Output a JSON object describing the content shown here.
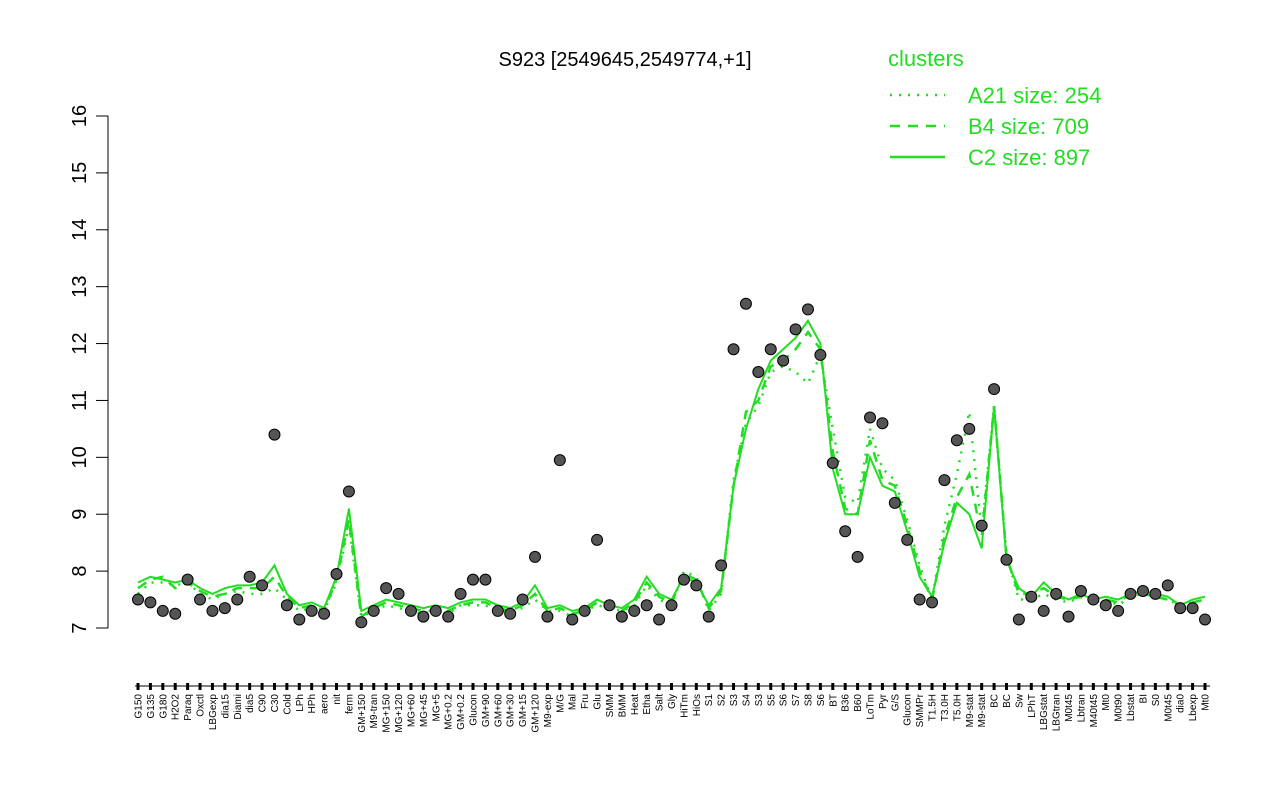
{
  "chart_data": {
    "type": "line",
    "title": "S923 [2549645,2549774,+1]",
    "legend_title": "clusters",
    "legend_position": "top-right",
    "categories": [
      "G150",
      "G135",
      "G180",
      "H2O2",
      "Paraq",
      "Oxctl",
      "LBGexp",
      "dia15",
      "Diami",
      "dia5",
      "C90",
      "C30",
      "Cold",
      "LPh",
      "HPh",
      "aero",
      "nit",
      "ferm",
      "GM+150",
      "M9-tran",
      "MG+150",
      "MG+120",
      "MG+60",
      "MG+45",
      "MG+5",
      "MG+0.2",
      "GM+0.2",
      "Glucon",
      "GM+90",
      "GM+60",
      "GM+30",
      "GM+15",
      "GM+120",
      "M9-exp",
      "M/G",
      "Mal",
      "Fru",
      "Glu",
      "SMM",
      "BMM",
      "Heat",
      "Etha",
      "Salt",
      "Gly",
      "HiTm",
      "HiOs",
      "S1",
      "S2",
      "S3",
      "S4",
      "S3",
      "S5",
      "S6",
      "S7",
      "S8",
      "S6",
      "BT",
      "B36",
      "B60",
      "LoTm",
      "Pyr",
      "G/S",
      "Glucon",
      "SMMPr",
      "T1.5H",
      "T3.0H",
      "T5.0H",
      "M9-stat",
      "M9-stat",
      "BC",
      "BC",
      "Sw",
      "LPhT",
      "LBGstat",
      "LBGtran",
      "M0t45",
      "Lbtran",
      "M40t45",
      "Mt0",
      "M0t90",
      "Lbstat",
      "BI",
      "S0",
      "M0t45",
      "dia0",
      "Lbexp",
      "Mt0"
    ],
    "points": {
      "color": "#000000",
      "values": [
        7.5,
        7.45,
        7.3,
        7.25,
        7.85,
        7.5,
        7.3,
        7.35,
        7.5,
        7.9,
        7.75,
        10.4,
        7.4,
        7.15,
        7.3,
        7.25,
        7.95,
        9.4,
        7.1,
        7.3,
        7.7,
        7.6,
        7.3,
        7.2,
        7.3,
        7.2,
        7.6,
        7.85,
        7.85,
        7.3,
        7.25,
        7.5,
        8.25,
        7.2,
        9.95,
        7.15,
        7.3,
        8.55,
        7.4,
        7.2,
        7.3,
        7.4,
        7.15,
        7.4,
        7.85,
        7.75,
        7.2,
        8.1,
        11.9,
        12.7,
        11.5,
        11.9,
        11.7,
        12.25,
        12.6,
        11.8,
        9.9,
        8.7,
        8.25,
        10.7,
        10.6,
        9.2,
        8.55,
        7.5,
        7.45,
        9.6,
        10.3,
        10.5,
        8.8,
        11.2,
        8.2,
        7.15,
        7.55,
        7.3,
        7.6,
        7.2,
        7.65,
        7.5,
        7.4,
        7.3,
        7.6,
        7.65,
        7.6,
        7.75,
        7.35,
        7.35,
        7.15
      ]
    },
    "series": [
      {
        "name": "A21 size: 254",
        "color": "#22dd22",
        "style": "dotted",
        "values": [
          7.6,
          7.8,
          7.8,
          7.75,
          7.8,
          7.6,
          7.5,
          7.6,
          7.65,
          7.6,
          7.6,
          7.7,
          7.5,
          7.3,
          7.35,
          7.3,
          7.8,
          8.8,
          7.2,
          7.3,
          7.4,
          7.35,
          7.3,
          7.25,
          7.3,
          7.25,
          7.4,
          7.4,
          7.4,
          7.3,
          7.3,
          7.35,
          7.5,
          7.3,
          7.3,
          7.2,
          7.3,
          7.4,
          7.35,
          7.3,
          7.4,
          7.75,
          7.5,
          7.4,
          8.0,
          7.9,
          7.3,
          7.6,
          9.6,
          10.6,
          10.9,
          11.5,
          11.6,
          11.5,
          11.3,
          11.8,
          10.5,
          9.3,
          9.2,
          10.5,
          9.8,
          9.6,
          8.9,
          8.1,
          7.5,
          8.8,
          9.7,
          10.8,
          8.7,
          10.9,
          8.3,
          7.5,
          7.5,
          7.6,
          7.5,
          7.45,
          7.55,
          7.45,
          7.5,
          7.4,
          7.55,
          7.6,
          7.55,
          7.5,
          7.4,
          7.45,
          7.5
        ]
      },
      {
        "name": "B4 size: 709",
        "color": "#22dd22",
        "style": "dashed",
        "values": [
          7.7,
          7.85,
          7.9,
          7.7,
          7.8,
          7.65,
          7.55,
          7.6,
          7.7,
          7.7,
          7.7,
          7.9,
          7.55,
          7.35,
          7.4,
          7.3,
          7.85,
          8.9,
          7.2,
          7.35,
          7.45,
          7.4,
          7.35,
          7.3,
          7.3,
          7.3,
          7.4,
          7.45,
          7.45,
          7.35,
          7.3,
          7.4,
          7.6,
          7.3,
          7.35,
          7.25,
          7.3,
          7.45,
          7.35,
          7.3,
          7.45,
          7.8,
          7.55,
          7.45,
          7.95,
          7.85,
          7.35,
          7.65,
          9.5,
          10.8,
          11.0,
          11.6,
          11.7,
          11.9,
          12.2,
          11.9,
          10.1,
          9.1,
          9.0,
          10.3,
          9.6,
          9.5,
          8.8,
          8.0,
          7.5,
          8.6,
          9.3,
          9.7,
          8.6,
          10.9,
          8.25,
          7.6,
          7.6,
          7.7,
          7.55,
          7.5,
          7.55,
          7.45,
          7.5,
          7.45,
          7.6,
          7.6,
          7.55,
          7.5,
          7.4,
          7.45,
          7.5
        ]
      },
      {
        "name": "C2 size: 897",
        "color": "#22dd22",
        "style": "solid",
        "values": [
          7.8,
          7.9,
          7.85,
          7.8,
          7.85,
          7.7,
          7.6,
          7.7,
          7.75,
          7.75,
          7.8,
          8.1,
          7.6,
          7.4,
          7.45,
          7.35,
          7.9,
          9.1,
          7.3,
          7.4,
          7.5,
          7.45,
          7.4,
          7.35,
          7.4,
          7.35,
          7.45,
          7.5,
          7.5,
          7.4,
          7.35,
          7.45,
          7.75,
          7.35,
          7.4,
          7.3,
          7.35,
          7.5,
          7.4,
          7.35,
          7.5,
          7.9,
          7.6,
          7.5,
          7.9,
          7.8,
          7.4,
          7.7,
          9.5,
          10.5,
          11.2,
          11.7,
          11.9,
          12.1,
          12.4,
          12.0,
          9.8,
          9.0,
          9.0,
          10.0,
          9.5,
          9.4,
          8.7,
          7.9,
          7.55,
          8.5,
          9.2,
          9.0,
          8.4,
          10.9,
          8.2,
          7.7,
          7.55,
          7.8,
          7.6,
          7.5,
          7.6,
          7.5,
          7.55,
          7.5,
          7.6,
          7.65,
          7.6,
          7.55,
          7.4,
          7.5,
          7.55
        ]
      }
    ],
    "ylim": [
      7,
      16
    ],
    "yticks": [
      7,
      8,
      9,
      10,
      11,
      12,
      13,
      14,
      15,
      16
    ]
  }
}
